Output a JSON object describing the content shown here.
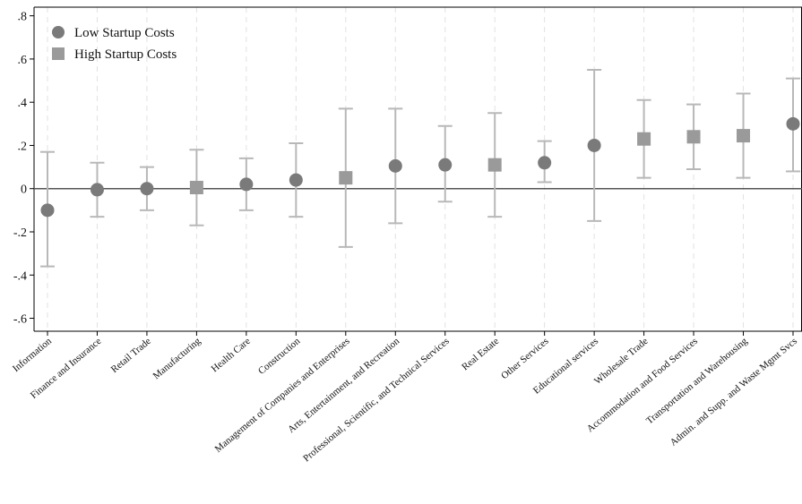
{
  "chart_data": {
    "type": "scatter",
    "subtype": "point-estimate-with-confidence-intervals",
    "title": "",
    "xlabel": "",
    "ylabel": "",
    "ylim": [
      -0.66,
      0.84
    ],
    "y_ticks": [
      ".8",
      ".6",
      ".4",
      ".2",
      "0",
      "-.2",
      "-.4",
      "-.6"
    ],
    "y_tick_values": [
      0.8,
      0.6,
      0.4,
      0.2,
      0,
      -0.2,
      -0.4,
      -0.6
    ],
    "vertical_grid": true,
    "horizontal_grid": false,
    "reference_line_y": 0,
    "legend_position": "top-left",
    "series": [
      {
        "name": "Low Startup Costs",
        "marker": "circle",
        "color": "#7a7a7a"
      },
      {
        "name": "High Startup Costs",
        "marker": "square",
        "color": "#9a9a9a"
      }
    ],
    "ci_color": "#b8b8b8",
    "points": [
      {
        "category": "Information",
        "series": "Low Startup Costs",
        "estimate": -0.1,
        "ci_low": -0.36,
        "ci_high": 0.17
      },
      {
        "category": "Finance and Insurance",
        "series": "Low Startup Costs",
        "estimate": -0.005,
        "ci_low": -0.13,
        "ci_high": 0.12
      },
      {
        "category": "Retail Trade",
        "series": "Low Startup Costs",
        "estimate": 0.0,
        "ci_low": -0.1,
        "ci_high": 0.1
      },
      {
        "category": "Manufacturing",
        "series": "High Startup Costs",
        "estimate": 0.005,
        "ci_low": -0.17,
        "ci_high": 0.18
      },
      {
        "category": "Health Care",
        "series": "Low Startup Costs",
        "estimate": 0.02,
        "ci_low": -0.1,
        "ci_high": 0.14
      },
      {
        "category": "Construction",
        "series": "Low Startup Costs",
        "estimate": 0.04,
        "ci_low": -0.13,
        "ci_high": 0.21
      },
      {
        "category": "Management of Companies and Enterprises",
        "series": "High Startup Costs",
        "estimate": 0.05,
        "ci_low": -0.27,
        "ci_high": 0.37
      },
      {
        "category": "Arts, Entertainment, and Recreation",
        "series": "Low Startup Costs",
        "estimate": 0.105,
        "ci_low": -0.16,
        "ci_high": 0.37
      },
      {
        "category": "Professional, Scientific, and Technical Services",
        "series": "Low Startup Costs",
        "estimate": 0.11,
        "ci_low": -0.06,
        "ci_high": 0.29
      },
      {
        "category": "Real Estate",
        "series": "High Startup Costs",
        "estimate": 0.11,
        "ci_low": -0.13,
        "ci_high": 0.35
      },
      {
        "category": "Other Services",
        "series": "Low Startup Costs",
        "estimate": 0.12,
        "ci_low": 0.03,
        "ci_high": 0.22
      },
      {
        "category": "Educational services",
        "series": "Low Startup Costs",
        "estimate": 0.2,
        "ci_low": -0.15,
        "ci_high": 0.55
      },
      {
        "category": "Wholesale Trade",
        "series": "High Startup Costs",
        "estimate": 0.23,
        "ci_low": 0.05,
        "ci_high": 0.41
      },
      {
        "category": "Accommodation and Food Services",
        "series": "High Startup Costs",
        "estimate": 0.24,
        "ci_low": 0.09,
        "ci_high": 0.39
      },
      {
        "category": "Transportation and Warehousing",
        "series": "High Startup Costs",
        "estimate": 0.245,
        "ci_low": 0.05,
        "ci_high": 0.44
      },
      {
        "category": "Admin. and Supp. and Waste Mgmt Svcs",
        "series": "Low Startup Costs",
        "estimate": 0.3,
        "ci_low": 0.08,
        "ci_high": 0.51
      }
    ]
  }
}
